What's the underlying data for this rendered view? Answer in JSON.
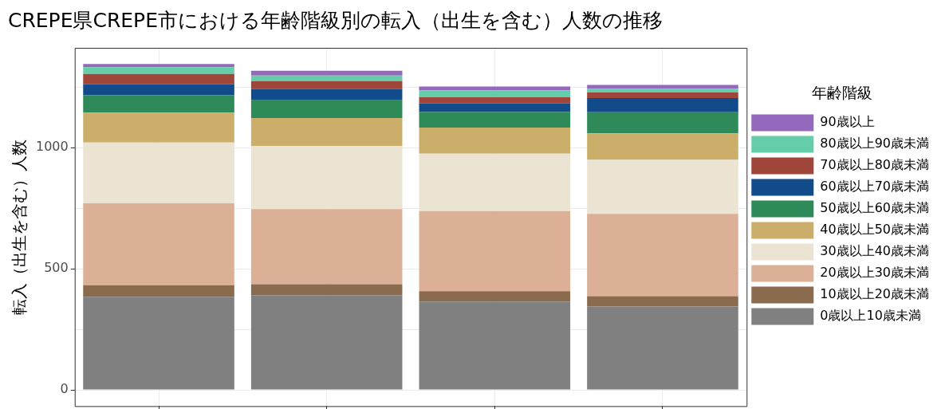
{
  "chart_data": {
    "type": "bar",
    "title": "CREPE県CREPE市における年齢階級別の転入（出生を含む）人数の推移",
    "ylabel": "転入（出生を含む）人数",
    "legend_title": "年齢階級",
    "categories": [
      null,
      null,
      null,
      null
    ],
    "stacked": true,
    "ylim": [
      -67,
      1412
    ],
    "yticks": [
      0,
      {
        "value": 250,
        "label": null
      },
      500,
      {
        "value": 750,
        "label": null
      },
      1000,
      {
        "value": 1250,
        "label": null
      }
    ],
    "grid": true,
    "legend": "right",
    "tick_labels": "y",
    "series": [
      {
        "name": "0歳以上10歳未満",
        "color": "#808080",
        "values": [
          384,
          391,
          365,
          344
        ]
      },
      {
        "name": "10歳以上20歳未満",
        "color": "#8b6b4e",
        "values": [
          48,
          45,
          42,
          43
        ]
      },
      {
        "name": "20歳以上30歳未満",
        "color": "#dbb096",
        "values": [
          338,
          310,
          331,
          340
        ]
      },
      {
        "name": "30歳以上40歳未満",
        "color": "#ebe4d3",
        "values": [
          251,
          261,
          237,
          223
        ]
      },
      {
        "name": "40歳以上50歳未満",
        "color": "#cbae6a",
        "values": [
          124,
          115,
          108,
          109
        ]
      },
      {
        "name": "50歳以上60歳未満",
        "color": "#2e8a59",
        "values": [
          72,
          74,
          64,
          87
        ]
      },
      {
        "name": "60歳以上70歳未満",
        "color": "#114b8a",
        "values": [
          45,
          46,
          36,
          59
        ]
      },
      {
        "name": "70歳以上80歳未満",
        "color": "#a04539",
        "values": [
          42,
          33,
          25,
          23
        ]
      },
      {
        "name": "80歳以上90歳未満",
        "color": "#66cdaa",
        "values": [
          28,
          23,
          28,
          15
        ]
      },
      {
        "name": "90歳以上",
        "color": "#9469bd",
        "values": [
          13,
          19,
          16,
          16
        ]
      }
    ]
  }
}
